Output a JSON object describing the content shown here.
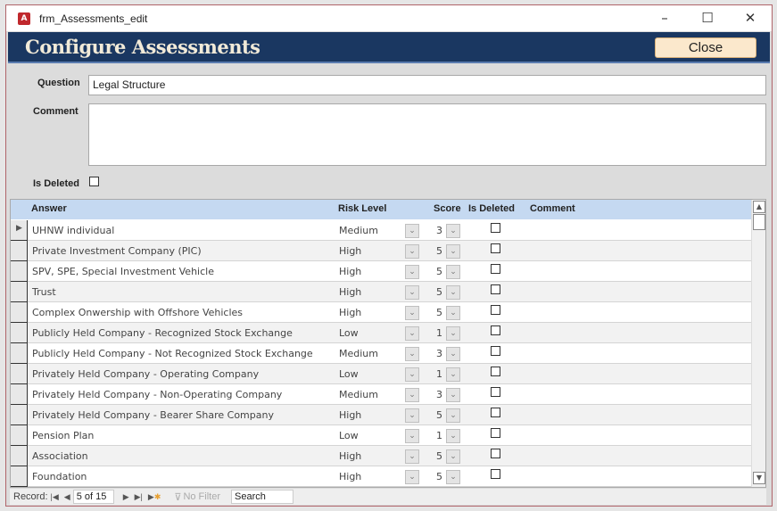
{
  "window": {
    "title": "frm_Assessments_edit",
    "minimize": "–",
    "maximize": "☐",
    "close": "✕"
  },
  "header": {
    "title": "Configure Assessments",
    "close_label": "Close"
  },
  "form": {
    "question_label": "Question",
    "question_value": "Legal Structure",
    "comment_label": "Comment",
    "comment_value": "",
    "is_deleted_label": "Is Deleted",
    "is_deleted": false
  },
  "grid": {
    "columns": [
      "Answer",
      "Risk Level",
      "Score",
      "Is Deleted",
      "Comment"
    ],
    "rows": [
      {
        "answer": "UHNW individual",
        "risk": "Medium",
        "score": "3",
        "deleted": false,
        "comment": ""
      },
      {
        "answer": "Private Investment Company (PIC)",
        "risk": "High",
        "score": "5",
        "deleted": false,
        "comment": ""
      },
      {
        "answer": "SPV, SPE, Special Investment Vehicle",
        "risk": "High",
        "score": "5",
        "deleted": false,
        "comment": ""
      },
      {
        "answer": "Trust",
        "risk": "High",
        "score": "5",
        "deleted": false,
        "comment": ""
      },
      {
        "answer": "Complex Onwership with Offshore Vehicles",
        "risk": "High",
        "score": "5",
        "deleted": false,
        "comment": ""
      },
      {
        "answer": "Publicly Held Company - Recognized Stock Exchange",
        "risk": "Low",
        "score": "1",
        "deleted": false,
        "comment": ""
      },
      {
        "answer": "Publicly Held Company - Not Recognized Stock Exchange",
        "risk": "Medium",
        "score": "3",
        "deleted": false,
        "comment": ""
      },
      {
        "answer": "Privately Held Company - Operating Company",
        "risk": "Low",
        "score": "1",
        "deleted": false,
        "comment": ""
      },
      {
        "answer": "Privately Held Company - Non-Operating Company",
        "risk": "Medium",
        "score": "3",
        "deleted": false,
        "comment": ""
      },
      {
        "answer": "Privately Held Company - Bearer Share Company",
        "risk": "High",
        "score": "5",
        "deleted": false,
        "comment": ""
      },
      {
        "answer": "Pension Plan",
        "risk": "Low",
        "score": "1",
        "deleted": false,
        "comment": ""
      },
      {
        "answer": "Association",
        "risk": "High",
        "score": "5",
        "deleted": false,
        "comment": ""
      },
      {
        "answer": "Foundation",
        "risk": "High",
        "score": "5",
        "deleted": false,
        "comment": ""
      }
    ]
  },
  "nav": {
    "record_label": "Record:",
    "record_value": "5 of 15",
    "filter_label": "No Filter",
    "search_placeholder": "Search"
  },
  "colors": {
    "header_bg": "#1a3761",
    "header_text": "#f1ead8",
    "close_button": "#fbe8cc",
    "grid_header": "#c5d9f1"
  }
}
